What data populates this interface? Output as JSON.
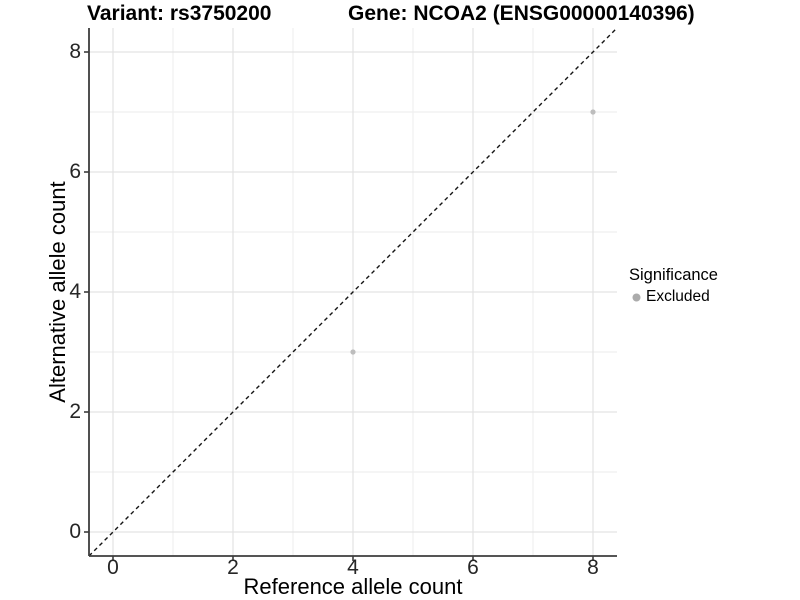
{
  "chart_data": {
    "type": "scatter",
    "titles": {
      "left": "Variant: rs3750200",
      "right": "Gene: NCOA2 (ENSG00000140396)"
    },
    "xlabel": "Reference allele count",
    "ylabel": "Alternative allele count",
    "xlim": [
      -0.4,
      8.4
    ],
    "ylim": [
      -0.4,
      8.4
    ],
    "xticks": [
      0,
      2,
      4,
      6,
      8
    ],
    "yticks": [
      0,
      2,
      4,
      6,
      8
    ],
    "xticks_minor": [
      1,
      3,
      5,
      7
    ],
    "yticks_minor": [
      1,
      3,
      5,
      7
    ],
    "grid": "major+minor, white background, left and bottom axis lines only",
    "series": [
      {
        "name": "Excluded",
        "marker": "circle",
        "color": "#bdbdbd",
        "points": [
          {
            "x": 4,
            "y": 3
          },
          {
            "x": 8,
            "y": 7
          }
        ]
      }
    ],
    "reference_line": {
      "description": "identity line y = x",
      "style": "dashed",
      "color": "#141414",
      "from": [
        -0.4,
        -0.4
      ],
      "to": [
        8.4,
        8.4
      ]
    },
    "legend": {
      "title": "Significance",
      "position": "right-middle",
      "items": [
        {
          "label": "Excluded",
          "marker": "circle",
          "color": "#ababab"
        }
      ]
    }
  },
  "colors": {
    "background": "#ffffff",
    "grid_major": "#e3e3e3",
    "grid_minor": "#efefef",
    "axis_line": "#3d3d3d",
    "tick_label": "#262626"
  }
}
